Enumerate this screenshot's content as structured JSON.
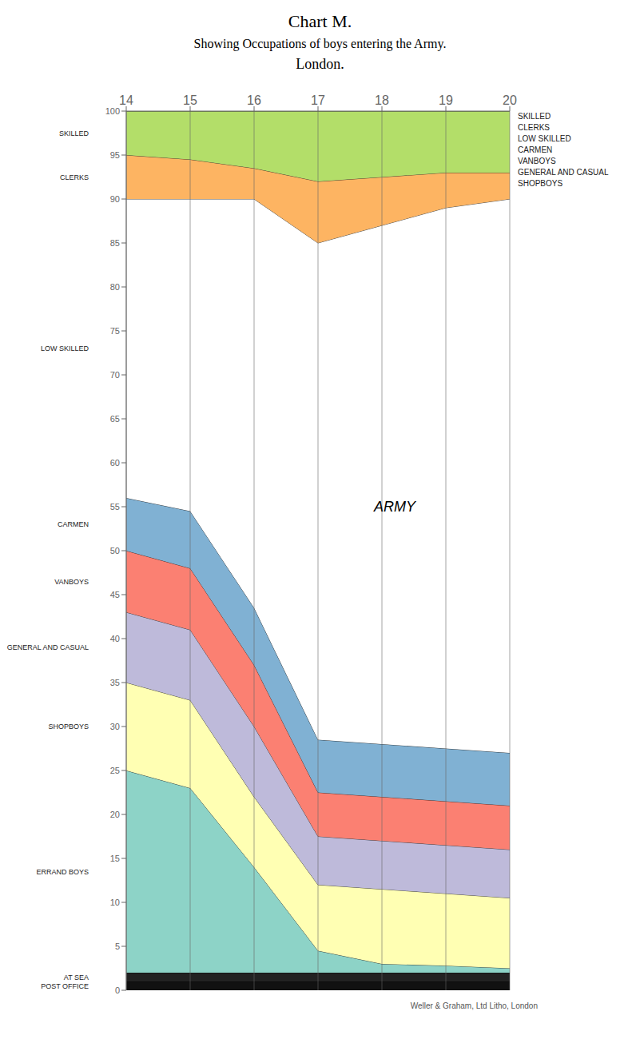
{
  "chart_data": {
    "type": "area",
    "stacked": true,
    "title": "Chart M.",
    "subtitle": [
      "Showing Occupations of boys entering the Army.",
      "London."
    ],
    "x": [
      14,
      15,
      16,
      17,
      18,
      19,
      20
    ],
    "xlim": [
      14,
      20
    ],
    "xticks": [
      14,
      15,
      16,
      17,
      18,
      19,
      20
    ],
    "ylim": [
      0,
      100
    ],
    "yticks": [
      0,
      5,
      10,
      15,
      20,
      25,
      30,
      35,
      40,
      45,
      50,
      55,
      60,
      65,
      70,
      75,
      80,
      85,
      90,
      95,
      100
    ],
    "grid": true,
    "series": [
      {
        "name": "POST OFFICE",
        "color": "#111111",
        "values": [
          1.0,
          1.0,
          1.0,
          1.0,
          1.0,
          1.0,
          1.0
        ]
      },
      {
        "name": "AT SEA",
        "color": "#222222",
        "values": [
          1.0,
          1.0,
          1.0,
          1.0,
          1.0,
          1.0,
          1.0
        ]
      },
      {
        "name": "ERRAND BOYS",
        "color": "#8dd3c7",
        "values": [
          23.0,
          21.0,
          12.0,
          2.5,
          1.0,
          0.8,
          0.5
        ]
      },
      {
        "name": "SHOPBOYS",
        "color": "#ffffb3",
        "values": [
          10.0,
          10.0,
          8.0,
          7.5,
          8.5,
          8.2,
          8.0
        ]
      },
      {
        "name": "GENERAL AND CASUAL",
        "color": "#bebada",
        "values": [
          8.0,
          8.0,
          8.0,
          5.5,
          5.5,
          5.5,
          5.5
        ]
      },
      {
        "name": "VANBOYS",
        "color": "#fb8072",
        "values": [
          7.0,
          7.0,
          7.0,
          5.0,
          5.0,
          5.0,
          5.0
        ]
      },
      {
        "name": "CARMEN",
        "color": "#80b1d3",
        "values": [
          6.0,
          6.5,
          6.5,
          6.0,
          6.0,
          6.0,
          6.0
        ]
      },
      {
        "name": "LOW SKILLED",
        "color": "#ffffff",
        "values": [
          34.0,
          35.5,
          46.5,
          56.5,
          59.0,
          61.5,
          63.0
        ]
      },
      {
        "name": "CLERKS",
        "color": "#fdb462",
        "values": [
          5.0,
          4.5,
          3.5,
          7.0,
          5.5,
          4.0,
          3.0
        ]
      },
      {
        "name": "SKILLED",
        "color": "#b3de69",
        "values": [
          5.0,
          5.5,
          6.5,
          8.0,
          7.5,
          7.0,
          7.0
        ]
      }
    ],
    "annotations": [
      {
        "text": "ARMY",
        "x": 18.2,
        "y": 55.0
      }
    ],
    "right_labels": [
      "SKILLED",
      "CLERKS",
      "LOW SKILLED",
      "CARMEN",
      "VANBOYS",
      "GENERAL AND CASUAL",
      "SHOPBOYS"
    ],
    "footer": "Weller & Graham, Ltd  Litho, London"
  }
}
